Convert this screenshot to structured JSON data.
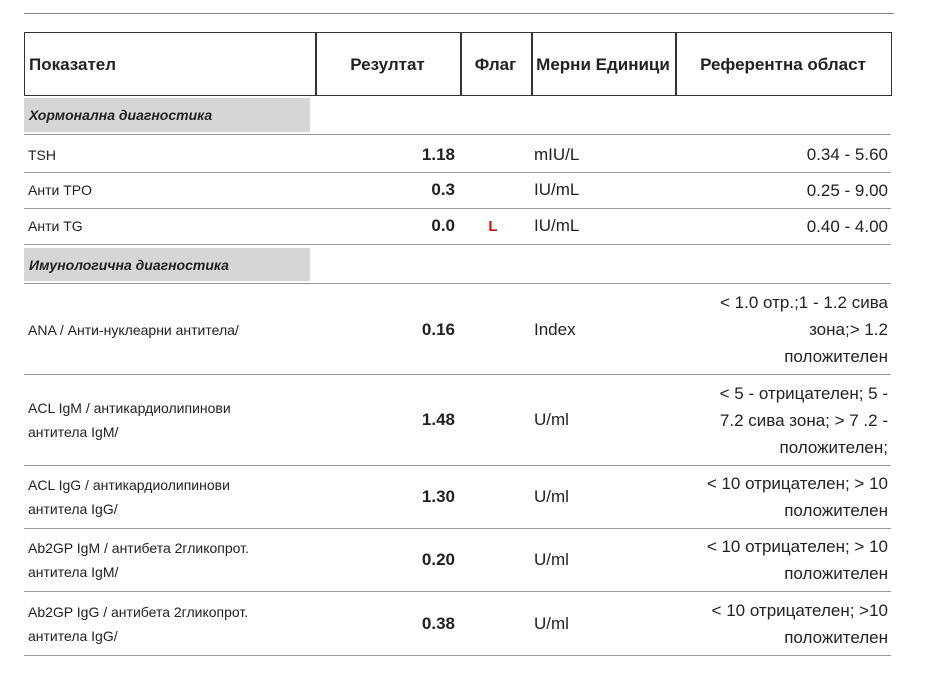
{
  "table": {
    "columns": [
      "Показател",
      "Резултат",
      "Флаг",
      "Мерни Единици",
      "Референтна област"
    ],
    "sections": [
      {
        "title": "Хормонална диагностика",
        "rows": [
          {
            "name": [
              "TSH"
            ],
            "result": "1.18",
            "units": "mIU/L",
            "reference": [
              "0.34 - 5.60"
            ]
          },
          {
            "name": [
              "Анти TPO"
            ],
            "result": "0.3",
            "units": "IU/mL",
            "reference": [
              "0.25 - 9.00"
            ]
          },
          {
            "name": [
              "Анти TG"
            ],
            "result": "0.0",
            "flag": "L",
            "units": "IU/mL",
            "reference": [
              "0.40 - 4.00"
            ]
          }
        ]
      },
      {
        "title": "Имунологична диагностика",
        "rows": [
          {
            "name": [
              "ANA / Анти-нуклеарни антитела/"
            ],
            "result": "0.16",
            "units": "Index",
            "reference": [
              "< 1.0 отр.;1 - 1.2 сива",
              "зона;> 1.2",
              "положителен"
            ]
          },
          {
            "name": [
              "ACL IgM / антикардиолипинови",
              "антитела IgM/"
            ],
            "result": "1.48",
            "units": "U/ml",
            "reference": [
              "< 5 - отрицателен; 5 -",
              "7.2 сива зона; > 7 .2 -",
              "положителен;"
            ]
          },
          {
            "name": [
              "ACL IgG / антикардиолипинови",
              "антитела IgG/"
            ],
            "result": "1.30",
            "units": "U/ml",
            "reference": [
              "< 10 отрицателен; > 10",
              "положителен"
            ]
          },
          {
            "name": [
              "Ab2GP IgM / антибета 2гликопрот.",
              "антитела IgM/"
            ],
            "result": "0.20",
            "units": "U/ml",
            "reference": [
              "< 10 отрицателен; > 10",
              "положителен"
            ]
          },
          {
            "name": [
              "Ab2GP IgG / антибета 2гликопрот.",
              "антитела IgG/"
            ],
            "result": "0.38",
            "units": "U/ml",
            "reference": [
              "< 10 отрицателен; >10",
              "положителен"
            ]
          }
        ]
      }
    ]
  }
}
